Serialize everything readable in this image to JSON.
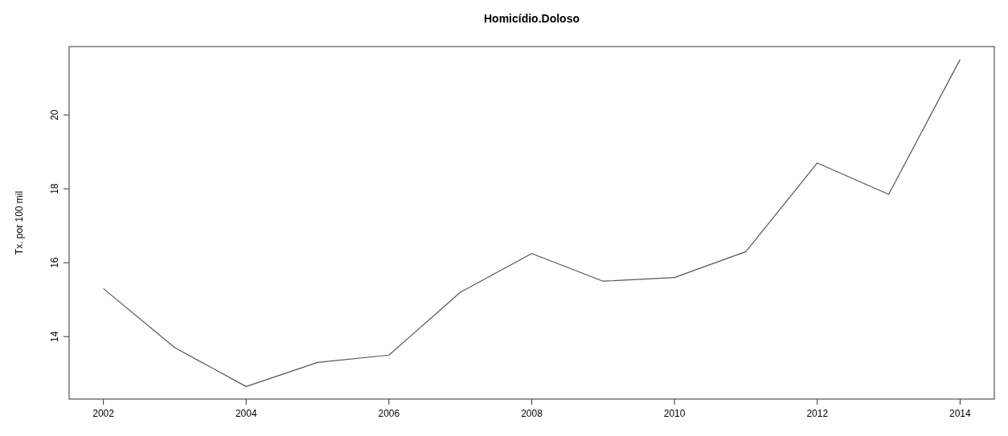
{
  "chart_data": {
    "type": "line",
    "title": "Homicídio.Doloso",
    "ylabel": "Tx. por 100 mil",
    "x": [
      2002,
      2003,
      2004,
      2005,
      2006,
      2007,
      2008,
      2009,
      2010,
      2011,
      2012,
      2013,
      2014
    ],
    "series": [
      {
        "color": "#555555",
        "values": [
          15.3,
          13.7,
          12.65,
          13.3,
          13.5,
          15.2,
          16.25,
          15.5,
          15.6,
          16.3,
          18.7,
          17.85,
          21.5
        ]
      }
    ],
    "xlim": [
      2001.52,
      2014.48
    ],
    "ylim": [
      12.31,
      21.85
    ],
    "xticks": [
      2002,
      2004,
      2006,
      2008,
      2010,
      2012,
      2014
    ],
    "yticks": [
      14,
      16,
      18,
      20
    ],
    "marker": "none",
    "line_style": "solid"
  }
}
